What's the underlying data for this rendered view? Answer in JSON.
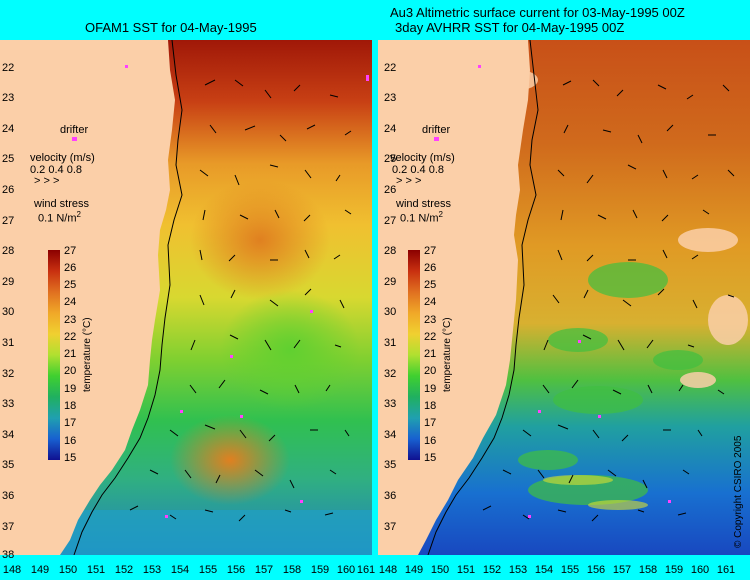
{
  "left_title": "OFAM1 SST for 04-May-1995",
  "right_title_line1": "Au3 Altimetric surface current for 03-May-1995 00Z",
  "right_title_line2": "3day AVHRR SST for 04-May-1995 00Z",
  "copyright": "© Copyright CSIRO 2005",
  "latitudes": [
    "22",
    "23",
    "24",
    "25",
    "26",
    "27",
    "28",
    "29",
    "30",
    "31",
    "32",
    "33",
    "34",
    "35",
    "36",
    "37",
    "38"
  ],
  "longitudes": [
    "148",
    "149",
    "150",
    "151",
    "152",
    "153",
    "154",
    "155",
    "156",
    "157",
    "158",
    "159",
    "160",
    "161"
  ],
  "legend": {
    "drifter": "drifter",
    "velocity": "velocity (m/s)",
    "velocity_scale": "0.2 0.4 0.8",
    "wind_stress": "wind stress",
    "wind_scale": "0.1 N/m",
    "wind_sup": "2"
  },
  "colorbar": {
    "title": "temperature (°C)",
    "ticks": [
      "27",
      "26",
      "25",
      "24",
      "23",
      "22",
      "21",
      "20",
      "19",
      "18",
      "17",
      "16",
      "15"
    ],
    "colors": [
      "#8b0000",
      "#b0200a",
      "#d2641e",
      "#e89a28",
      "#f0c830",
      "#e8e030",
      "#a8e030",
      "#40d030",
      "#20b050",
      "#20a0a0",
      "#1870d0",
      "#1840c0",
      "#101090"
    ]
  }
}
